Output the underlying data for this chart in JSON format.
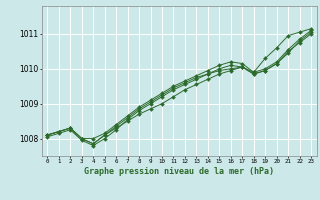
{
  "title": "Graphe pression niveau de la mer (hPa)",
  "bg_color": "#cce8e8",
  "line_color": "#2d6b2d",
  "grid_color": "#ffffff",
  "x_ticks": [
    0,
    1,
    2,
    3,
    4,
    5,
    6,
    7,
    8,
    9,
    10,
    11,
    12,
    13,
    14,
    15,
    16,
    17,
    18,
    19,
    20,
    21,
    22,
    23
  ],
  "ylim": [
    1007.5,
    1011.8
  ],
  "yticks": [
    1008,
    1009,
    1010,
    1011
  ],
  "series": [
    [
      1008.1,
      1008.2,
      1008.3,
      1008.0,
      1007.85,
      1008.1,
      1008.3,
      1008.5,
      1008.7,
      1008.85,
      1009.0,
      1009.2,
      1009.4,
      1009.55,
      1009.7,
      1009.85,
      1009.95,
      1010.05,
      1009.9,
      1010.3,
      1010.6,
      1010.95,
      1011.05,
      1011.15
    ],
    [
      1008.1,
      1008.2,
      1008.3,
      1008.0,
      1007.85,
      1008.1,
      1008.35,
      1008.6,
      1008.85,
      1009.05,
      1009.25,
      1009.45,
      1009.6,
      1009.75,
      1009.85,
      1009.95,
      1010.0,
      1010.05,
      1009.85,
      1009.95,
      1010.15,
      1010.45,
      1010.8,
      1011.05
    ],
    [
      1008.1,
      1008.2,
      1008.3,
      1008.0,
      1008.0,
      1008.15,
      1008.4,
      1008.65,
      1008.9,
      1009.1,
      1009.3,
      1009.5,
      1009.65,
      1009.8,
      1009.95,
      1010.1,
      1010.2,
      1010.15,
      1009.9,
      1010.0,
      1010.2,
      1010.55,
      1010.85,
      1011.1
    ],
    [
      1008.05,
      1008.15,
      1008.25,
      1007.95,
      1007.8,
      1008.0,
      1008.25,
      1008.55,
      1008.8,
      1009.0,
      1009.2,
      1009.4,
      1009.55,
      1009.7,
      1009.85,
      1010.0,
      1010.1,
      1010.05,
      1009.85,
      1009.95,
      1010.15,
      1010.5,
      1010.75,
      1011.0
    ]
  ]
}
